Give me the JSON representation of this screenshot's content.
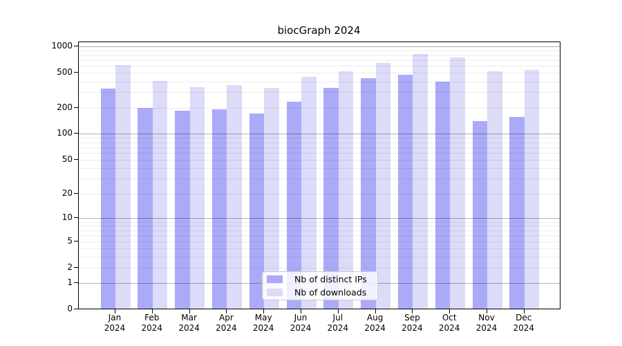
{
  "chart_data": {
    "type": "bar",
    "title": "biocGraph 2024",
    "categories": [
      "Jan",
      "Feb",
      "Mar",
      "Apr",
      "May",
      "Jun",
      "Jul",
      "Aug",
      "Sep",
      "Oct",
      "Nov",
      "Dec"
    ],
    "category_year": "2024",
    "series": [
      {
        "name": "Nb of distinct IPs",
        "color": "#abaaf8",
        "values": [
          327,
          196,
          180,
          189,
          169,
          229,
          333,
          425,
          465,
          392,
          137,
          154
        ]
      },
      {
        "name": "Nb of downloads",
        "color": "#dcdbf8",
        "values": [
          604,
          400,
          338,
          354,
          329,
          446,
          515,
          637,
          812,
          737,
          510,
          537
        ]
      }
    ],
    "y_ticks": [
      1000,
      500,
      200,
      100,
      50,
      20,
      10,
      5,
      2,
      1,
      0
    ],
    "y_scale": "log10(1+x)",
    "ylim": [
      0,
      1000
    ],
    "grid": true,
    "legend_position": "lower center inside",
    "colors": {
      "distinct_ips_bar": "#abaaf8",
      "downloads_bar": "#dcdbf8",
      "axis": "#000000",
      "grid_minor": "#ededed",
      "grid_major": "#b3b3b3",
      "legend_border": "#cccccc"
    }
  }
}
